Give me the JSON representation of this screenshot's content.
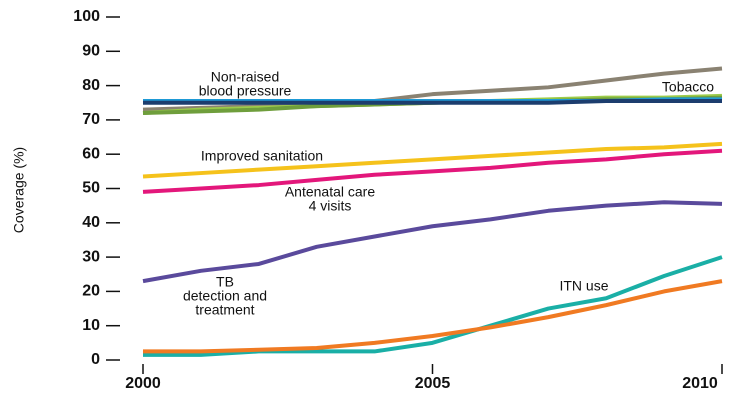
{
  "chart_data": {
    "type": "line",
    "y_label": "Coverage (%)",
    "x": [
      2000,
      2001,
      2002,
      2003,
      2004,
      2005,
      2006,
      2007,
      2008,
      2009,
      2010
    ],
    "xlim": [
      2000,
      2010
    ],
    "xticks": [
      2000,
      2005,
      2010
    ],
    "ylim": [
      0,
      100
    ],
    "yticks": [
      0,
      10,
      20,
      30,
      40,
      50,
      60,
      70,
      80,
      90,
      100
    ],
    "series": [
      {
        "color": "#8a8272",
        "values": [
          73,
          73.5,
          74,
          74.5,
          75.5,
          77.5,
          78.5,
          79.5,
          81.5,
          83.5,
          85
        ]
      },
      {
        "name": [
          "Tobacco"
        ],
        "color": "#9ccb4a",
        "values": [
          72,
          73,
          73.5,
          74,
          74.5,
          75,
          75.5,
          76,
          76.5,
          76.5,
          77
        ]
      },
      {
        "color": "#6f9e3c",
        "values": [
          72,
          72.5,
          73,
          74,
          74.5,
          75,
          75.5,
          75.5,
          76,
          76,
          76.5
        ]
      },
      {
        "name": [
          "Non-raised",
          "blood pressure"
        ],
        "color": "#1e9ad6",
        "values": [
          75.5,
          75.5,
          75.5,
          75.5,
          75.5,
          75.5,
          75.5,
          75.5,
          75.5,
          76,
          76
        ]
      },
      {
        "color": "#1c3d6e",
        "values": [
          75,
          75,
          75,
          75,
          75,
          75,
          75,
          75,
          75.5,
          75.5,
          75.5
        ]
      },
      {
        "name": [
          "Improved sanitation"
        ],
        "color": "#f5c21b",
        "values": [
          53.5,
          54.5,
          55.5,
          56.5,
          57.5,
          58.5,
          59.5,
          60.5,
          61.5,
          62,
          63
        ]
      },
      {
        "name": [
          "Antenatal care",
          "4 visits"
        ],
        "color": "#e3177b",
        "values": [
          49,
          50,
          51,
          52.5,
          54,
          55,
          56,
          57.5,
          58.5,
          60,
          61
        ]
      },
      {
        "name": [
          "TB",
          "detection and",
          "treatment"
        ],
        "color": "#5a4a9c",
        "values": [
          23,
          26,
          28,
          33,
          36,
          39,
          41,
          43.5,
          45,
          46,
          45.5
        ]
      },
      {
        "name": [
          "ITN use"
        ],
        "color": "#1aafa6",
        "values": [
          1.5,
          1.5,
          2.5,
          2.5,
          2.5,
          5,
          10,
          15,
          18,
          24.5,
          30
        ]
      },
      {
        "color": "#f07a22",
        "values": [
          2.5,
          2.5,
          3,
          3.5,
          5,
          7,
          9.5,
          12.5,
          16,
          20,
          23
        ]
      }
    ]
  }
}
